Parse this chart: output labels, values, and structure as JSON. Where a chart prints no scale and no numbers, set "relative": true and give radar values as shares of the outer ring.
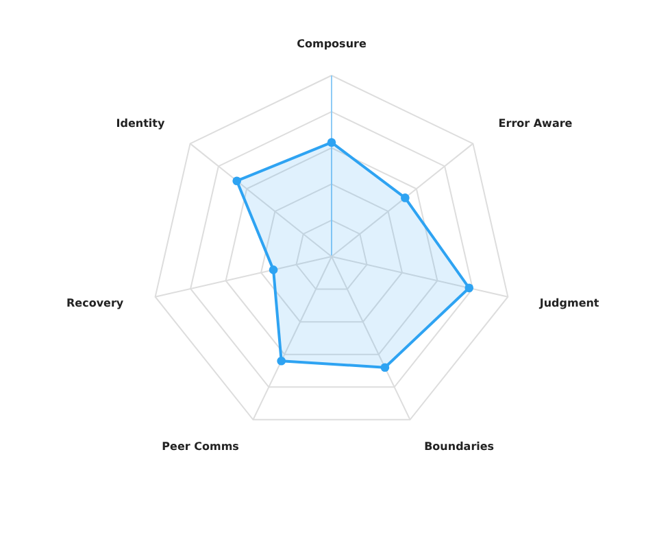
{
  "chart_data": {
    "type": "radar",
    "relative": true,
    "grid": true,
    "marker": "circle",
    "categories": [
      "Composure",
      "Error Aware",
      "Judgment",
      "Boundaries",
      "Peer Comms",
      "Recovery",
      "Identity"
    ],
    "series": [
      {
        "color": "#2ea3f2",
        "values": [
          0.63,
          0.52,
          0.78,
          0.68,
          0.64,
          0.33,
          0.67
        ]
      }
    ]
  }
}
